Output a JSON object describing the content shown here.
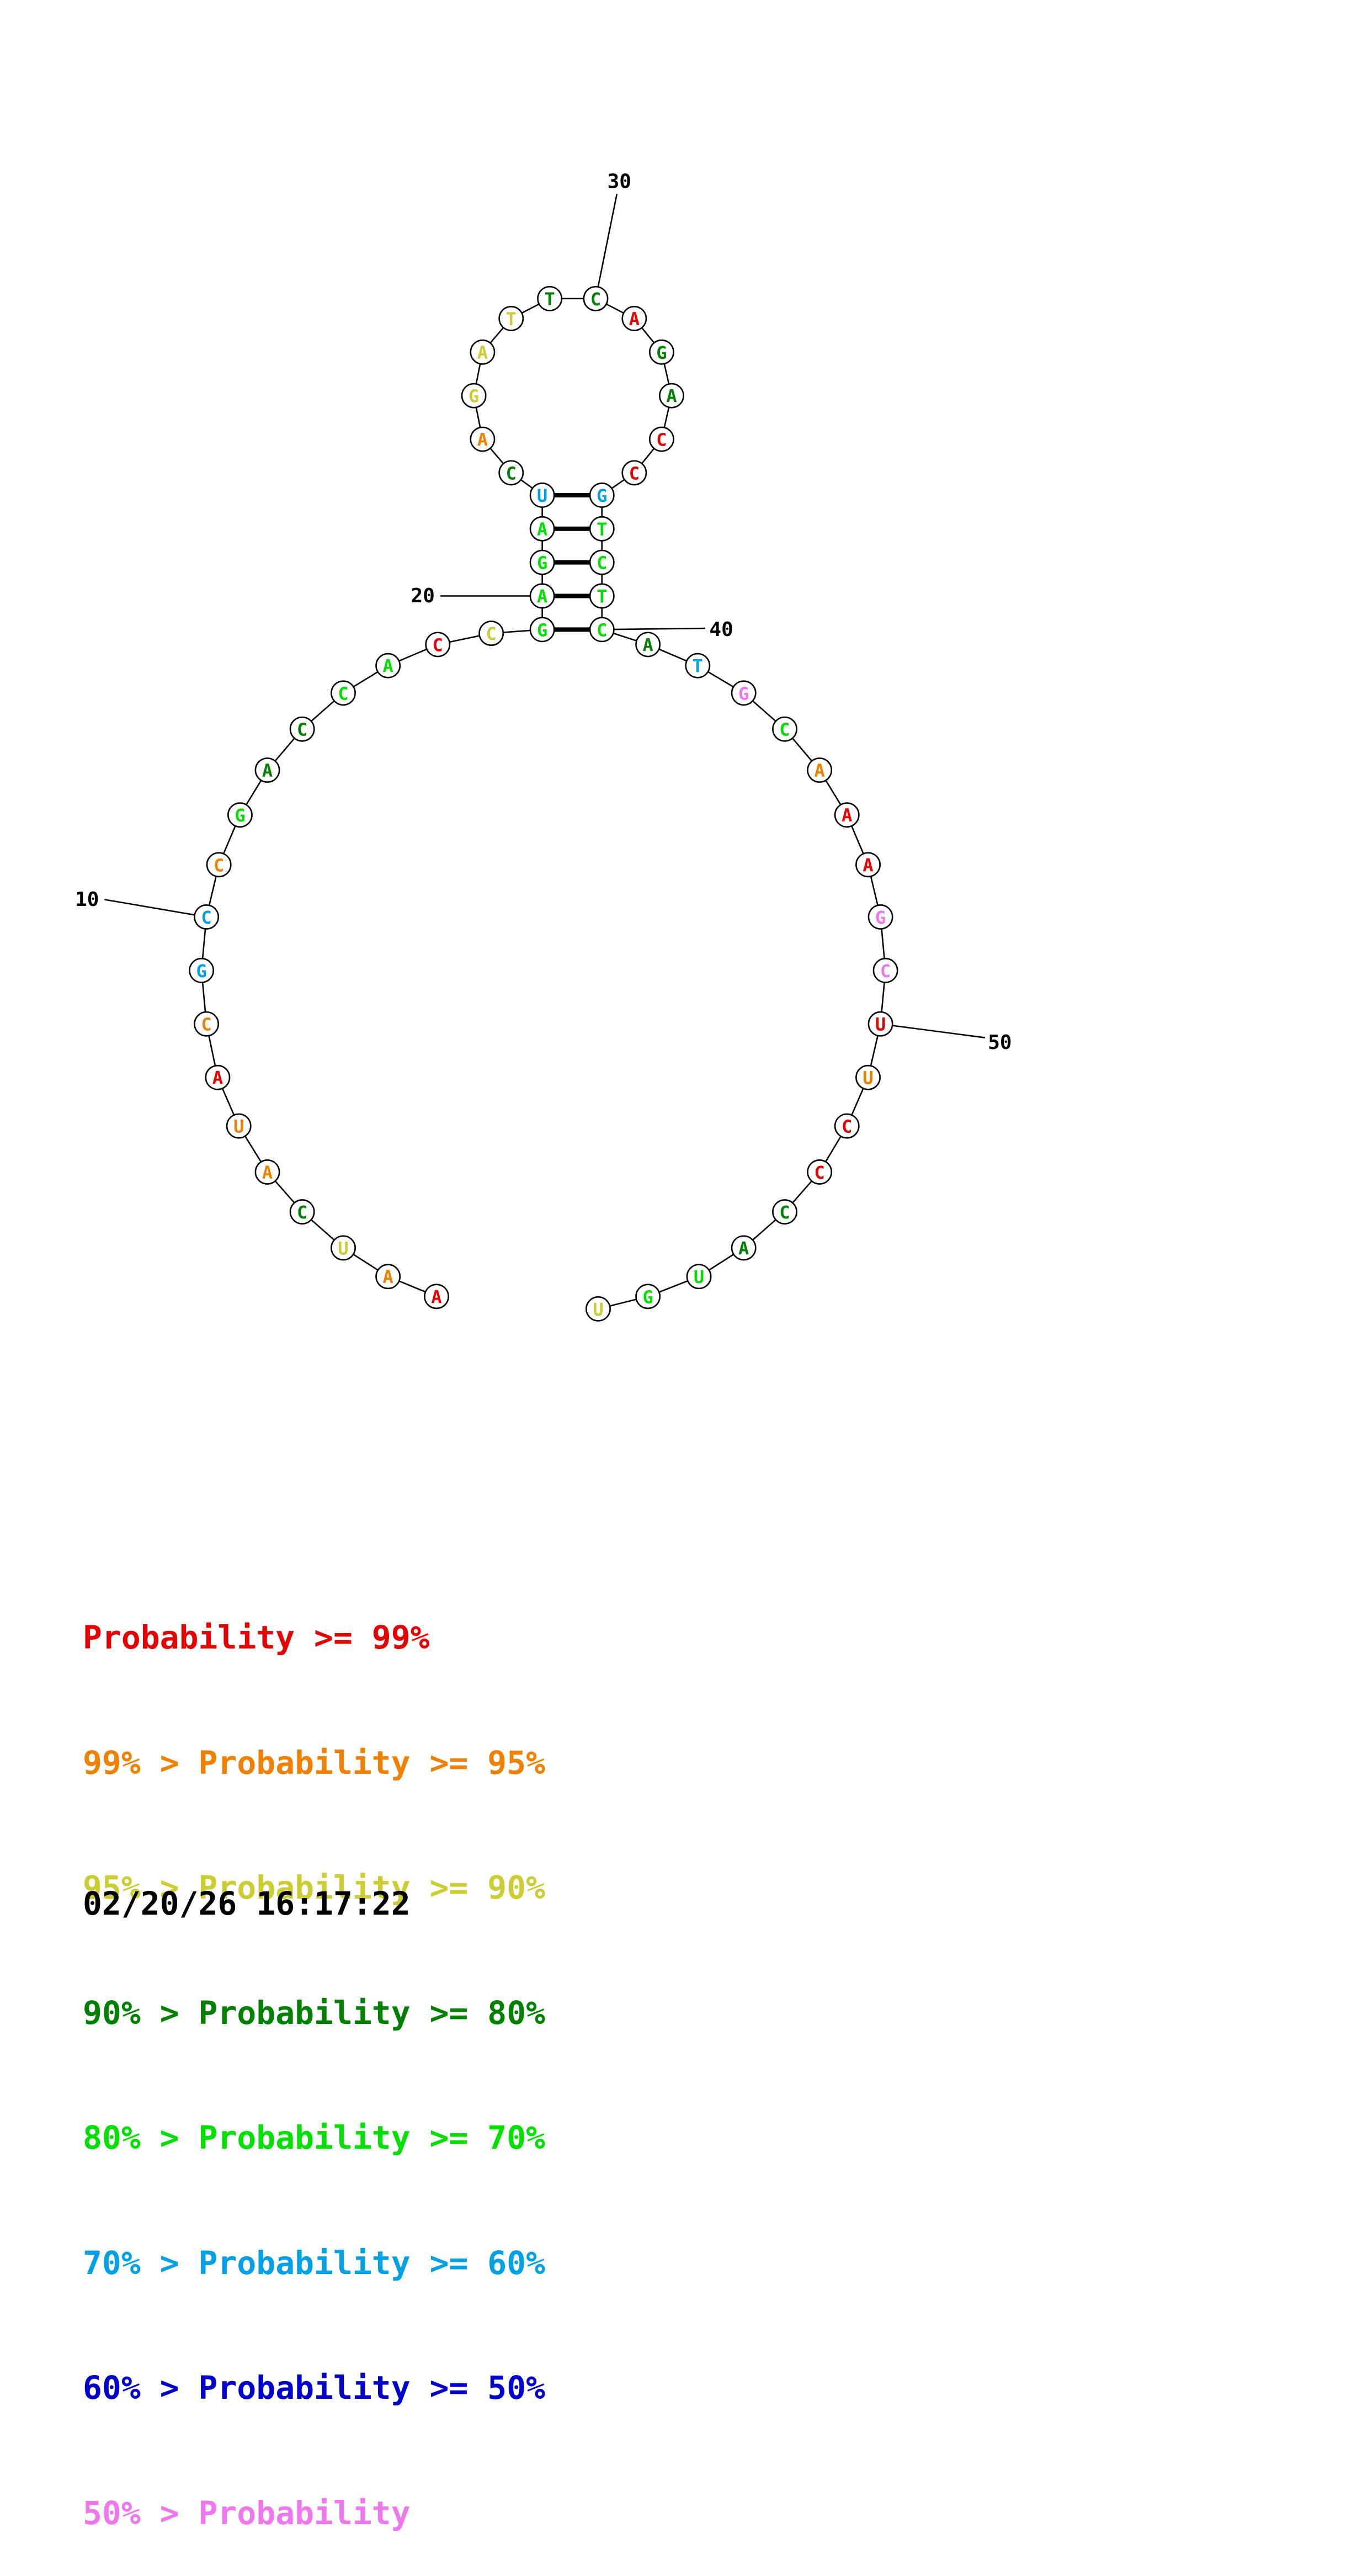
{
  "structure": {
    "nucleotides": [
      {
        "n": 1,
        "base": "A",
        "tier": 0
      },
      {
        "n": 2,
        "base": "A",
        "tier": 1
      },
      {
        "n": 3,
        "base": "U",
        "tier": 2
      },
      {
        "n": 4,
        "base": "C",
        "tier": 3
      },
      {
        "n": 5,
        "base": "A",
        "tier": 1
      },
      {
        "n": 6,
        "base": "U",
        "tier": 1
      },
      {
        "n": 7,
        "base": "A",
        "tier": 0
      },
      {
        "n": 8,
        "base": "C",
        "tier": 1
      },
      {
        "n": 9,
        "base": "G",
        "tier": 5
      },
      {
        "n": 10,
        "base": "C",
        "tier": 5
      },
      {
        "n": 11,
        "base": "C",
        "tier": 1
      },
      {
        "n": 12,
        "base": "G",
        "tier": 4
      },
      {
        "n": 13,
        "base": "A",
        "tier": 3
      },
      {
        "n": 14,
        "base": "C",
        "tier": 3
      },
      {
        "n": 15,
        "base": "C",
        "tier": 4
      },
      {
        "n": 16,
        "base": "A",
        "tier": 4
      },
      {
        "n": 17,
        "base": "C",
        "tier": 0
      },
      {
        "n": 18,
        "base": "C",
        "tier": 2
      },
      {
        "n": 19,
        "base": "G",
        "tier": 4
      },
      {
        "n": 20,
        "base": "A",
        "tier": 4
      },
      {
        "n": 21,
        "base": "G",
        "tier": 4
      },
      {
        "n": 22,
        "base": "A",
        "tier": 4
      },
      {
        "n": 23,
        "base": "U",
        "tier": 5
      },
      {
        "n": 24,
        "base": "C",
        "tier": 3
      },
      {
        "n": 25,
        "base": "A",
        "tier": 1
      },
      {
        "n": 26,
        "base": "G",
        "tier": 2
      },
      {
        "n": 27,
        "base": "A",
        "tier": 2
      },
      {
        "n": 28,
        "base": "T",
        "tier": 2
      },
      {
        "n": 29,
        "base": "T",
        "tier": 3
      },
      {
        "n": 30,
        "base": "C",
        "tier": 3
      },
      {
        "n": 31,
        "base": "A",
        "tier": 0
      },
      {
        "n": 32,
        "base": "G",
        "tier": 3
      },
      {
        "n": 33,
        "base": "A",
        "tier": 3
      },
      {
        "n": 34,
        "base": "C",
        "tier": 0
      },
      {
        "n": 35,
        "base": "C",
        "tier": 0
      },
      {
        "n": 36,
        "base": "G",
        "tier": 5
      },
      {
        "n": 37,
        "base": "T",
        "tier": 4
      },
      {
        "n": 38,
        "base": "C",
        "tier": 4
      },
      {
        "n": 39,
        "base": "T",
        "tier": 4
      },
      {
        "n": 40,
        "base": "C",
        "tier": 4
      },
      {
        "n": 41,
        "base": "A",
        "tier": 3
      },
      {
        "n": 42,
        "base": "T",
        "tier": 5
      },
      {
        "n": 43,
        "base": "G",
        "tier": 7
      },
      {
        "n": 44,
        "base": "C",
        "tier": 4
      },
      {
        "n": 45,
        "base": "A",
        "tier": 1
      },
      {
        "n": 46,
        "base": "A",
        "tier": 0
      },
      {
        "n": 47,
        "base": "A",
        "tier": 0
      },
      {
        "n": 48,
        "base": "G",
        "tier": 7
      },
      {
        "n": 49,
        "base": "C",
        "tier": 7
      },
      {
        "n": 50,
        "base": "U",
        "tier": 0
      },
      {
        "n": 51,
        "base": "U",
        "tier": 1
      },
      {
        "n": 52,
        "base": "C",
        "tier": 0
      },
      {
        "n": 53,
        "base": "C",
        "tier": 0
      },
      {
        "n": 54,
        "base": "C",
        "tier": 3
      },
      {
        "n": 55,
        "base": "A",
        "tier": 3
      },
      {
        "n": 56,
        "base": "U",
        "tier": 4
      },
      {
        "n": 57,
        "base": "G",
        "tier": 4
      },
      {
        "n": 58,
        "base": "U",
        "tier": 2
      }
    ],
    "pairs": [
      [
        19,
        40
      ],
      [
        20,
        39
      ],
      [
        21,
        38
      ],
      [
        22,
        37
      ],
      [
        23,
        36
      ]
    ],
    "index_labels": [
      {
        "n": 10,
        "text": "10"
      },
      {
        "n": 20,
        "text": "20"
      },
      {
        "n": 30,
        "text": "30"
      },
      {
        "n": 40,
        "text": "40"
      },
      {
        "n": 50,
        "text": "50"
      }
    ]
  },
  "legend": [
    {
      "prefix": "",
      "suffix": "Probability >= 99%",
      "color": "#e60000"
    },
    {
      "prefix": "99% > ",
      "suffix": "Probability >= 95%",
      "color": "#f08000"
    },
    {
      "prefix": "95% > ",
      "suffix": "Probability >= 90%",
      "color": "#cccc33"
    },
    {
      "prefix": "90% > ",
      "suffix": "Probability >= 80%",
      "color": "#008000"
    },
    {
      "prefix": "80% > ",
      "suffix": "Probability >= 70%",
      "color": "#00e000"
    },
    {
      "prefix": "70% > ",
      "suffix": "Probability >= 60%",
      "color": "#00a0e6"
    },
    {
      "prefix": "60% > ",
      "suffix": "Probability >= 50%",
      "color": "#0000cc"
    },
    {
      "prefix": "50% > ",
      "suffix": "Probability",
      "color": "#ee77ee"
    }
  ],
  "timestamp": "02/20/26 16:17:22"
}
